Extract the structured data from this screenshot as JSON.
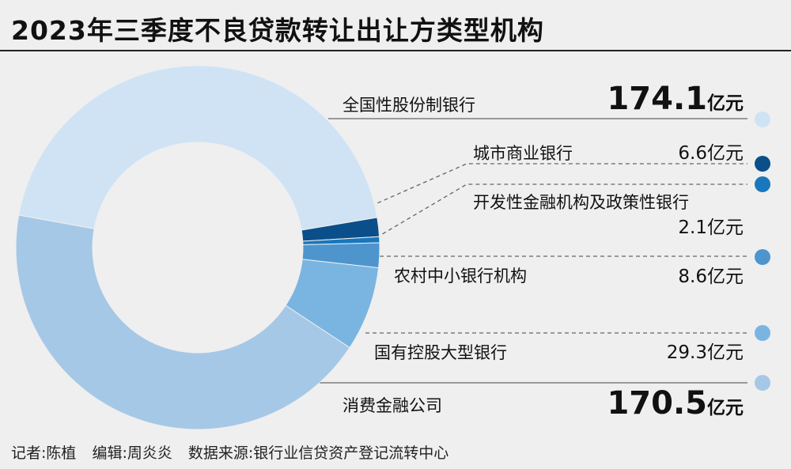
{
  "title": "2023年三季度不良贷款转让出让方类型机构",
  "unit": "亿元",
  "chart_data": {
    "type": "pie",
    "donut": true,
    "title": "2023年三季度不良贷款转让出让方类型机构",
    "unit": "亿元",
    "series": [
      {
        "name": "全国性股份制银行",
        "value": 174.1,
        "value_label": "174.1",
        "color": "#cfe3f4"
      },
      {
        "name": "城市商业银行",
        "value": 6.6,
        "value_label": "6.6",
        "color": "#0b4f8a"
      },
      {
        "name": "开发性金融机构及政策性银行",
        "value": 2.1,
        "value_label": "2.1",
        "color": "#1977bd"
      },
      {
        "name": "农村中小银行机构",
        "value": 8.6,
        "value_label": "8.6",
        "color": "#4e95ce"
      },
      {
        "name": "国有控股大型银行",
        "value": 29.3,
        "value_label": "29.3",
        "color": "#7ab5e1"
      },
      {
        "name": "消费金融公司",
        "value": 170.5,
        "value_label": "170.5",
        "color": "#a6c8e7"
      }
    ]
  },
  "footer": {
    "reporter": "记者:陈植",
    "editor": "编辑:周炎炎",
    "source": "数据来源:银行业信贷资产登记流转中心"
  }
}
